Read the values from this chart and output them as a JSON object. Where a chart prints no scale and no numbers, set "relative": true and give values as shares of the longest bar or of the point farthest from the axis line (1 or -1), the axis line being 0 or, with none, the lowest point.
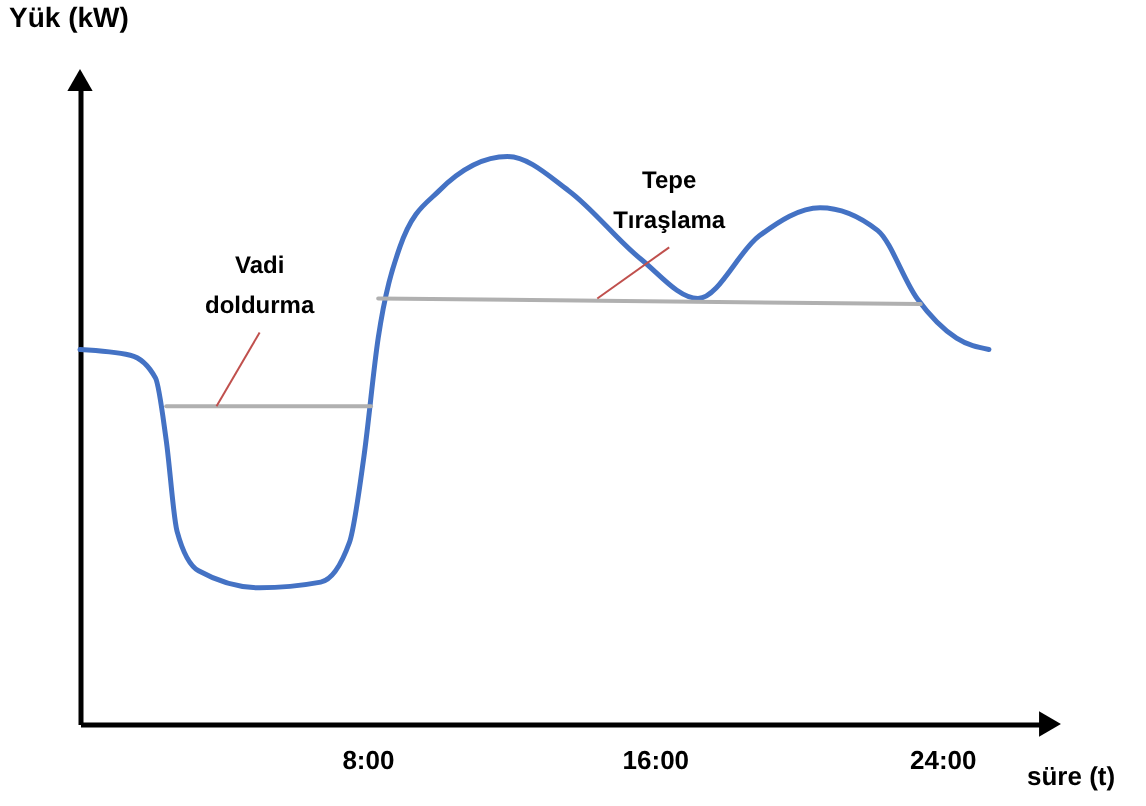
{
  "chart_data": {
    "type": "line",
    "relative": true,
    "xlabel": "süre (t)",
    "ylabel": "Yük (kW)",
    "xlim": [
      0,
      27
    ],
    "xticks": [
      {
        "value": 8,
        "label": "8:00"
      },
      {
        "value": 16,
        "label": "16:00"
      },
      {
        "value": 24,
        "label": "24:00"
      }
    ],
    "tick_labels": "x",
    "grid": false,
    "legend": false,
    "marker": "none",
    "line_style": "solid",
    "series": [
      {
        "color": "#4472c4",
        "x": [
          0,
          1.4,
          2.1,
          2.4,
          2.7,
          3.3,
          5.0,
          6.7,
          7.5,
          7.9,
          8.3,
          8.9,
          10.0,
          11.9,
          13.6,
          15.6,
          17.2,
          18.9,
          20.6,
          22.2,
          23.3,
          24.4,
          25.3
        ],
        "values": [
          0.66,
          0.65,
          0.61,
          0.5,
          0.34,
          0.27,
          0.24,
          0.25,
          0.32,
          0.47,
          0.68,
          0.84,
          0.94,
          1.0,
          0.94,
          0.82,
          0.75,
          0.86,
          0.91,
          0.87,
          0.75,
          0.68,
          0.66
        ]
      },
      {
        "color": "#b0b0b0",
        "x": [
          2.4,
          8.1
        ],
        "values": [
          0.56,
          0.56
        ]
      },
      {
        "color": "#b0b0b0",
        "x": [
          8.3,
          23.4
        ],
        "values": [
          0.75,
          0.74
        ]
      }
    ],
    "annotations": [
      {
        "text": "Vadi doldurma",
        "x": 3.8,
        "y": 0.56
      },
      {
        "text": "Tepe Tıraşlama",
        "x": 14.4,
        "y": 0.75
      }
    ]
  }
}
